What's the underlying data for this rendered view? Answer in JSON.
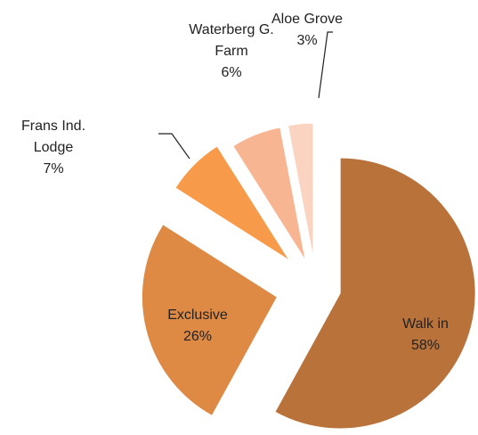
{
  "chart_data": {
    "type": "pie",
    "categories": [
      "Walk in",
      "Exclusive",
      "Frans Ind. Lodge",
      "Waterberg G. Farm",
      "Aloe Grove"
    ],
    "values": [
      58,
      26,
      7,
      6,
      3
    ],
    "value_labels": [
      "58%",
      "26%",
      "7%",
      "6%",
      "3%"
    ],
    "colors": [
      "#b9723a",
      "#de8a45",
      "#f79b4a",
      "#f8b592",
      "#fbd3c1"
    ]
  }
}
